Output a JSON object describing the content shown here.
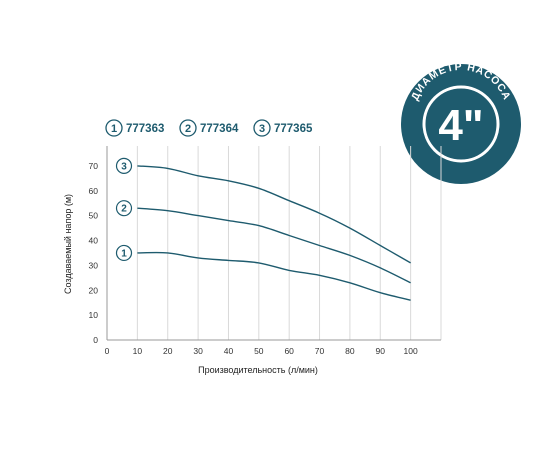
{
  "badge": {
    "label": "ДИАМЕТР НАСОСА",
    "size": "4\"",
    "color": "#1e5b6e"
  },
  "colors": {
    "line": "#1e5b6e",
    "grid": "#d9d9d9",
    "axis": "#9a9a9a"
  },
  "chart_data": {
    "type": "line",
    "title": "",
    "xlabel": "Производительность (л/мин)",
    "ylabel": "Создаваемый напор (м)",
    "xlim": [
      0,
      110
    ],
    "ylim": [
      0,
      78
    ],
    "xticks": [
      0,
      10,
      20,
      30,
      40,
      50,
      60,
      70,
      80,
      90,
      100
    ],
    "yticks": [
      0,
      10,
      20,
      30,
      40,
      50,
      60,
      70
    ],
    "grid": "vertical",
    "legend_position": "top",
    "series": [
      {
        "marker": "1",
        "name": "777363",
        "x": [
          10,
          20,
          30,
          40,
          50,
          60,
          70,
          80,
          90,
          100
        ],
        "values": [
          35,
          35,
          33,
          32,
          31,
          28,
          26,
          23,
          19,
          16
        ]
      },
      {
        "marker": "2",
        "name": "777364",
        "x": [
          10,
          20,
          30,
          40,
          50,
          60,
          70,
          80,
          90,
          100
        ],
        "values": [
          53,
          52,
          50,
          48,
          46,
          42,
          38,
          34,
          29,
          23
        ]
      },
      {
        "marker": "3",
        "name": "777365",
        "x": [
          10,
          20,
          30,
          40,
          50,
          60,
          70,
          80,
          90,
          100
        ],
        "values": [
          70,
          69,
          66,
          64,
          61,
          56,
          51,
          45,
          38,
          31
        ]
      }
    ]
  }
}
